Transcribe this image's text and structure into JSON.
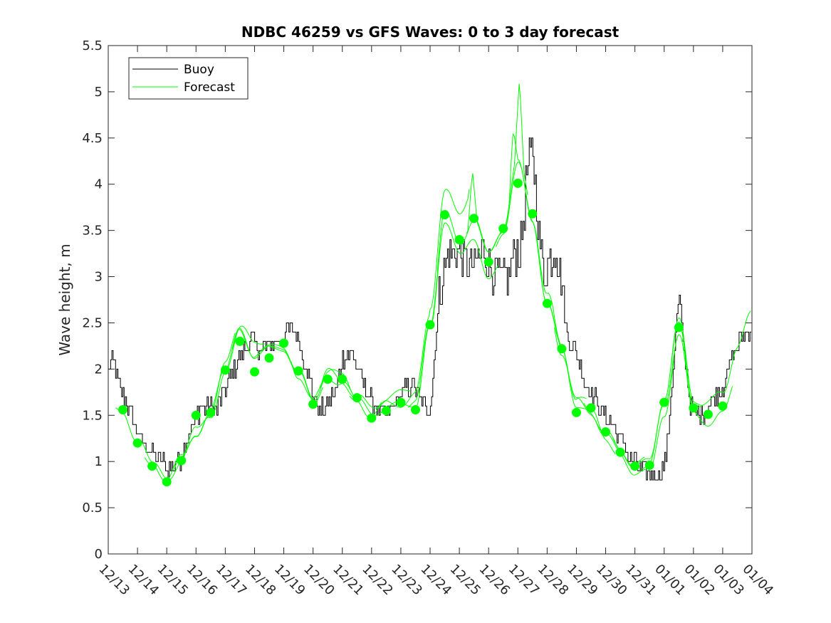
{
  "chart_data": {
    "type": "line",
    "title": "NDBC 46259 vs GFS Waves: 0 to 3 day forecast",
    "xlabel": "",
    "ylabel": "Wave height, m",
    "ylim": [
      0,
      5.5
    ],
    "xlim": [
      0,
      22
    ],
    "yticks": [
      0,
      0.5,
      1,
      1.5,
      2,
      2.5,
      3,
      3.5,
      4,
      4.5,
      5,
      5.5
    ],
    "ytick_labels": [
      "0",
      "0.5",
      "1",
      "1.5",
      "2",
      "2.5",
      "3",
      "3.5",
      "4",
      "4.5",
      "5",
      "5.5"
    ],
    "xtick_labels": [
      "12/13",
      "12/14",
      "12/15",
      "12/16",
      "12/17",
      "12/18",
      "12/19",
      "12/20",
      "12/21",
      "12/22",
      "12/23",
      "12/24",
      "12/25",
      "12/26",
      "12/27",
      "12/28",
      "12/29",
      "12/30",
      "12/31",
      "01/01",
      "01/02",
      "01/03",
      "01/04"
    ],
    "grid": false,
    "legend": {
      "location": "top-left",
      "entries": [
        "Buoy",
        "Forecast"
      ]
    },
    "colors": {
      "buoy": "#000000",
      "forecast": "#00ff00",
      "axis": "#262626"
    },
    "buoy_anchors": {
      "x": [
        0,
        0.15,
        0.3,
        0.5,
        0.8,
        1.0,
        1.3,
        1.6,
        1.9,
        2.0,
        2.2,
        2.5,
        2.8,
        3.1,
        3.4,
        3.7,
        4.0,
        4.3,
        4.6,
        4.9,
        5.2,
        5.5,
        5.8,
        6.1,
        6.4,
        6.7,
        6.9,
        7.0,
        7.2,
        7.5,
        7.8,
        8.0,
        8.3,
        8.6,
        8.9,
        9.2,
        9.5,
        9.8,
        10.1,
        10.4,
        10.7,
        10.9,
        11.0,
        11.1,
        11.3,
        11.6,
        11.9,
        12.2,
        12.5,
        12.8,
        13.1,
        13.4,
        13.7,
        13.9,
        14.1,
        14.3,
        14.5,
        14.7,
        14.9,
        15.1,
        15.3,
        15.5,
        15.7,
        16.0,
        16.3,
        16.6,
        16.9,
        17.2,
        17.5,
        17.8,
        18.1,
        18.4,
        18.7,
        18.9,
        19.0,
        19.1,
        19.3,
        19.5,
        19.7,
        19.9,
        20.1,
        20.4,
        20.7,
        21.0,
        21.3,
        21.6,
        22.0
      ],
      "y": [
        2.0,
        2.1,
        1.9,
        1.7,
        1.5,
        1.3,
        1.15,
        1.05,
        1.0,
        0.9,
        0.95,
        1.05,
        1.35,
        1.55,
        1.6,
        1.55,
        1.8,
        2.0,
        2.2,
        2.3,
        2.2,
        2.25,
        2.3,
        2.45,
        2.4,
        2.1,
        1.85,
        1.7,
        1.55,
        1.6,
        1.8,
        2.1,
        2.2,
        1.95,
        1.7,
        1.55,
        1.5,
        1.65,
        1.75,
        1.85,
        1.65,
        1.55,
        1.6,
        1.9,
        2.8,
        3.25,
        3.3,
        3.15,
        3.1,
        3.3,
        3.05,
        3.0,
        3.0,
        3.3,
        3.3,
        4.1,
        4.4,
        3.5,
        3.0,
        3.2,
        3.3,
        2.9,
        2.3,
        2.2,
        1.8,
        1.7,
        1.5,
        1.4,
        1.25,
        1.05,
        0.95,
        0.9,
        0.85,
        0.9,
        0.95,
        1.2,
        2.0,
        2.8,
        2.1,
        1.6,
        1.5,
        1.55,
        1.7,
        1.8,
        2.1,
        2.35,
        2.4
      ]
    },
    "forecast_anchors": {
      "x": [
        0.5,
        1.0,
        1.5,
        2.0,
        2.5,
        3.0,
        3.5,
        4.0,
        4.5,
        5.0,
        5.5,
        6.0,
        6.5,
        7.0,
        7.5,
        8.0,
        8.5,
        9.0,
        9.5,
        10.0,
        10.5,
        11.0,
        11.5,
        12.0,
        12.5,
        13.0,
        13.5,
        14.0,
        14.5,
        15.0,
        15.5,
        16.0,
        16.5,
        17.0,
        17.5,
        18.0,
        18.5,
        19.0,
        19.5,
        20.0,
        20.5,
        21.0,
        21.5,
        22.0
      ],
      "y": [
        1.55,
        1.2,
        0.95,
        0.8,
        1.0,
        1.3,
        1.5,
        1.95,
        2.4,
        2.15,
        2.2,
        2.25,
        1.95,
        1.65,
        1.95,
        1.85,
        1.65,
        1.5,
        1.6,
        1.6,
        1.65,
        2.5,
        3.7,
        3.35,
        3.65,
        3.2,
        3.5,
        4.2,
        3.6,
        2.75,
        2.2,
        1.65,
        1.55,
        1.3,
        1.1,
        0.95,
        0.95,
        1.65,
        2.45,
        1.6,
        1.55,
        1.65,
        2.1,
        2.4
      ]
    },
    "forecast_peaks": {
      "x": [
        12.45,
        13.85,
        14.05
      ],
      "y": [
        4.15,
        4.6,
        5.12
      ]
    },
    "forecast_dots": {
      "x": [
        0.5,
        1.0,
        1.5,
        2.0,
        2.5,
        3.0,
        3.5,
        4.0,
        4.5,
        5.0,
        5.5,
        6.0,
        6.5,
        7.0,
        7.5,
        8.0,
        8.5,
        9.0,
        9.5,
        10.0,
        10.5,
        11.0,
        11.5,
        12.0,
        12.5,
        13.0,
        13.5,
        14.0,
        14.5,
        15.0,
        15.5,
        16.0,
        16.5,
        17.0,
        17.5,
        18.0,
        18.5,
        19.0,
        19.5,
        20.0,
        20.5,
        21.0
      ],
      "y": [
        1.56,
        1.2,
        0.95,
        0.78,
        1.01,
        1.5,
        1.53,
        1.99,
        2.3,
        1.97,
        2.12,
        2.28,
        1.98,
        1.62,
        1.89,
        1.89,
        1.69,
        1.47,
        1.55,
        1.64,
        1.56,
        2.48,
        3.67,
        3.4,
        3.63,
        3.16,
        3.52,
        4.01,
        3.68,
        2.71,
        2.22,
        1.53,
        1.58,
        1.32,
        1.1,
        0.95,
        0.96,
        1.64,
        2.45,
        1.58,
        1.51,
        1.6
      ]
    }
  }
}
